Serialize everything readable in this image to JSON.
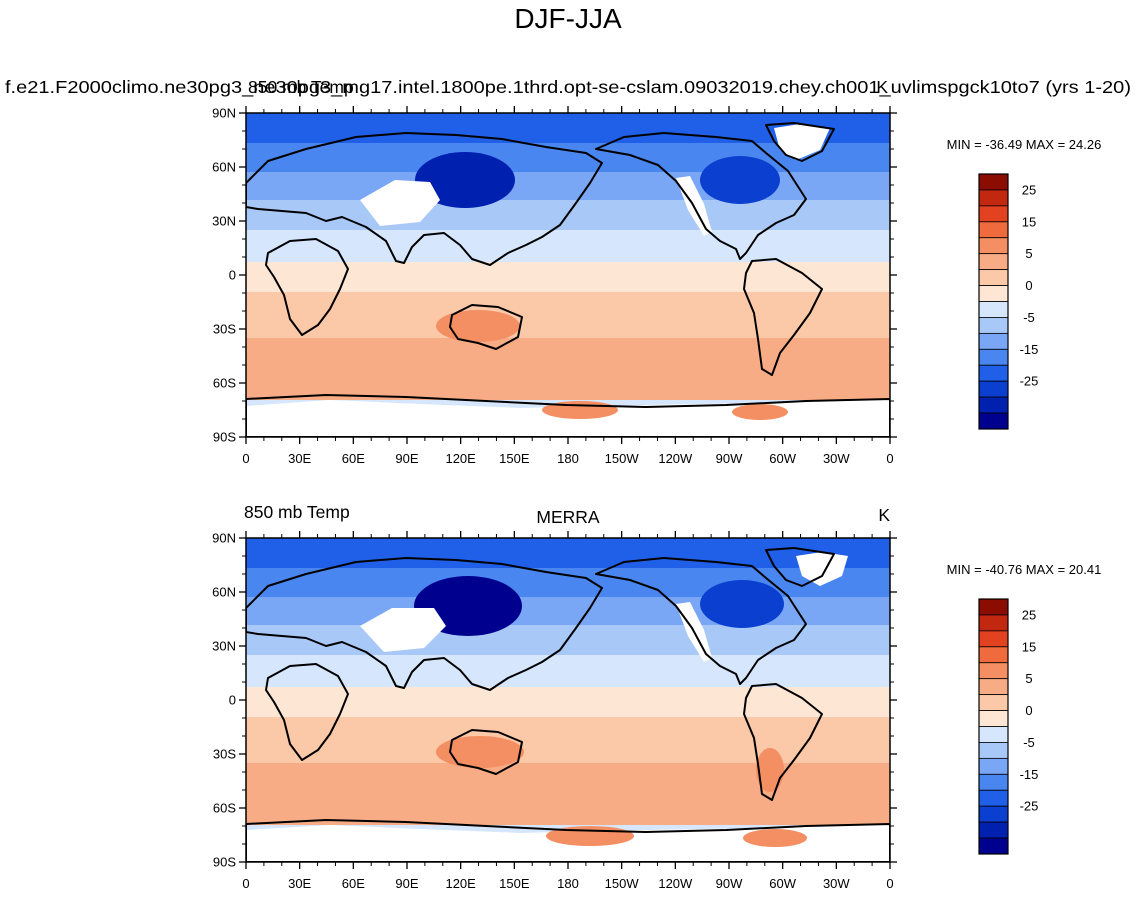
{
  "figure": {
    "title": "DJF-JJA",
    "units_label": "K"
  },
  "colors": {
    "scale": [
      "#00008f",
      "#0020b0",
      "#0a3fd0",
      "#2060e8",
      "#4a86f0",
      "#7aa7f5",
      "#a8c8f8",
      "#d6e7fd",
      "#fde6d4",
      "#fbc9a8",
      "#f8ac85",
      "#f48f63",
      "#ef6a3c",
      "#e24220",
      "#c22810",
      "#8b0c00"
    ],
    "land_mask": "#ffffff",
    "coast": "#000000"
  },
  "panels": [
    {
      "id": "model",
      "left_label": "",
      "center_label": "f.e21.F2000climo.ne30pg3_ne30pg3_mg17.intel.1800pe.1thrd.opt-se-cslam.09032019.chey.ch001_uvlimspgck10to7 (yrs 1-20)",
      "overlay_label": "850 mb Temp",
      "right_label": "K",
      "minmax": "MIN = -36.49 MAX =  24.26"
    },
    {
      "id": "obs",
      "left_label": "850 mb Temp",
      "center_label": "MERRA",
      "right_label": "K",
      "minmax": "MIN = -40.76 MAX =  20.41"
    }
  ],
  "axes": {
    "lat_labels": [
      "90N",
      "60N",
      "30N",
      "0",
      "30S",
      "60S",
      "90S"
    ],
    "lon_labels": [
      "0",
      "30E",
      "60E",
      "90E",
      "120E",
      "150E",
      "180",
      "150W",
      "120W",
      "90W",
      "60W",
      "30W",
      "0"
    ]
  },
  "colorbar": {
    "labels": [
      "25",
      "15",
      "5",
      "0",
      "-5",
      "-15",
      "-25"
    ]
  }
}
